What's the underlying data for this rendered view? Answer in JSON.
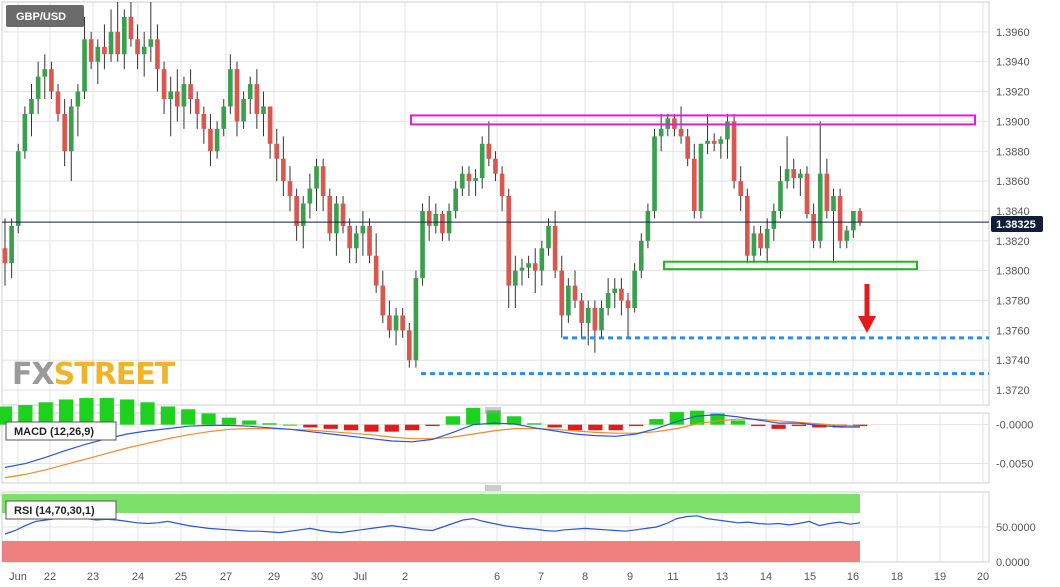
{
  "instrument": {
    "title": "GBP/USD",
    "last_price": "1.38325"
  },
  "watermark": {
    "part1": "FX",
    "part2": "STREET"
  },
  "colors": {
    "up": "#3aa04f",
    "down": "#d9574e",
    "grid": "#e3e3e3",
    "resistance": "#e21be2",
    "support": "#1fb81f",
    "levels": "#2a8df0",
    "arrow": "#e21b1b",
    "macd_line": "#2a55d8",
    "signal_line": "#f08a2a",
    "rsi_line": "#2a55d8",
    "overbought": "#7de06a",
    "oversold": "#f08080"
  },
  "chart_data": {
    "type": "candlestick",
    "x_ticks": [
      "Jun",
      "22",
      "23",
      "24",
      "25",
      "27",
      "29",
      "30",
      "Jul",
      "2",
      "6",
      "7",
      "8",
      "9",
      "11",
      "13",
      "14",
      "15",
      "16",
      "18",
      "19",
      "20"
    ],
    "y_ticks": [
      "1.3960",
      "1.3940",
      "1.3920",
      "1.3900",
      "1.3880",
      "1.3860",
      "1.3840",
      "1.3820",
      "1.3800",
      "1.3780",
      "1.3760",
      "1.3740",
      "1.3720"
    ],
    "ylim": [
      1.371,
      1.398
    ],
    "current_price": 1.38325,
    "candles": [
      [
        1.3815,
        1.3835,
        1.379,
        1.3805
      ],
      [
        1.3805,
        1.3835,
        1.3795,
        1.383
      ],
      [
        1.383,
        1.3885,
        1.3825,
        1.388
      ],
      [
        1.388,
        1.391,
        1.3875,
        1.3905
      ],
      [
        1.3905,
        1.3925,
        1.389,
        1.3915
      ],
      [
        1.3915,
        1.394,
        1.3905,
        1.393
      ],
      [
        1.393,
        1.3945,
        1.3915,
        1.3935
      ],
      [
        1.3935,
        1.394,
        1.3915,
        1.392
      ],
      [
        1.392,
        1.3925,
        1.39,
        1.3905
      ],
      [
        1.3905,
        1.3915,
        1.387,
        1.388
      ],
      [
        1.388,
        1.3915,
        1.386,
        1.391
      ],
      [
        1.391,
        1.3925,
        1.389,
        1.392
      ],
      [
        1.392,
        1.397,
        1.3915,
        1.3955
      ],
      [
        1.3955,
        1.396,
        1.3935,
        1.394
      ],
      [
        1.394,
        1.3955,
        1.3925,
        1.395
      ],
      [
        1.395,
        1.3965,
        1.3935,
        1.3945
      ],
      [
        1.3945,
        1.3975,
        1.394,
        1.396
      ],
      [
        1.396,
        1.398,
        1.394,
        1.3945
      ],
      [
        1.3945,
        1.3975,
        1.3935,
        1.397
      ],
      [
        1.397,
        1.398,
        1.395,
        1.3955
      ],
      [
        1.3955,
        1.3965,
        1.3935,
        1.3945
      ],
      [
        1.3945,
        1.396,
        1.393,
        1.395
      ],
      [
        1.395,
        1.398,
        1.394,
        1.3955
      ],
      [
        1.3955,
        1.3965,
        1.392,
        1.3935
      ],
      [
        1.3935,
        1.394,
        1.3905,
        1.3915
      ],
      [
        1.3915,
        1.393,
        1.389,
        1.392
      ],
      [
        1.392,
        1.3935,
        1.39,
        1.391
      ],
      [
        1.391,
        1.393,
        1.3895,
        1.3925
      ],
      [
        1.3925,
        1.3935,
        1.3905,
        1.3915
      ],
      [
        1.3915,
        1.392,
        1.3895,
        1.3905
      ],
      [
        1.3905,
        1.391,
        1.3885,
        1.3895
      ],
      [
        1.3895,
        1.3905,
        1.387,
        1.388
      ],
      [
        1.388,
        1.39,
        1.3875,
        1.3895
      ],
      [
        1.3895,
        1.3915,
        1.389,
        1.391
      ],
      [
        1.391,
        1.3945,
        1.3905,
        1.3935
      ],
      [
        1.3935,
        1.394,
        1.389,
        1.39
      ],
      [
        1.39,
        1.392,
        1.3895,
        1.3915
      ],
      [
        1.3915,
        1.393,
        1.3905,
        1.3925
      ],
      [
        1.3925,
        1.3935,
        1.3895,
        1.3905
      ],
      [
        1.3905,
        1.392,
        1.389,
        1.391
      ],
      [
        1.391,
        1.391,
        1.3875,
        1.3885
      ],
      [
        1.3885,
        1.3895,
        1.386,
        1.3875
      ],
      [
        1.3875,
        1.389,
        1.385,
        1.386
      ],
      [
        1.386,
        1.387,
        1.384,
        1.385
      ],
      [
        1.385,
        1.3855,
        1.382,
        1.383
      ],
      [
        1.383,
        1.385,
        1.3815,
        1.3845
      ],
      [
        1.3845,
        1.3865,
        1.3835,
        1.3855
      ],
      [
        1.3855,
        1.3875,
        1.384,
        1.387
      ],
      [
        1.387,
        1.3875,
        1.384,
        1.385
      ],
      [
        1.385,
        1.3855,
        1.382,
        1.3825
      ],
      [
        1.3825,
        1.385,
        1.381,
        1.3845
      ],
      [
        1.3845,
        1.385,
        1.3825,
        1.383
      ],
      [
        1.383,
        1.3835,
        1.3805,
        1.3815
      ],
      [
        1.3815,
        1.383,
        1.3805,
        1.3825
      ],
      [
        1.3825,
        1.384,
        1.381,
        1.383
      ],
      [
        1.383,
        1.3835,
        1.3805,
        1.381
      ],
      [
        1.381,
        1.3825,
        1.3785,
        1.379
      ],
      [
        1.379,
        1.38,
        1.3765,
        1.377
      ],
      [
        1.377,
        1.378,
        1.3755,
        1.376
      ],
      [
        1.376,
        1.3775,
        1.375,
        1.377
      ],
      [
        1.377,
        1.3775,
        1.3755,
        1.376
      ],
      [
        1.376,
        1.3765,
        1.3735,
        1.374
      ],
      [
        1.374,
        1.38,
        1.3735,
        1.3795
      ],
      [
        1.3795,
        1.3845,
        1.379,
        1.384
      ],
      [
        1.384,
        1.385,
        1.382,
        1.383
      ],
      [
        1.383,
        1.3845,
        1.3825,
        1.3838
      ],
      [
        1.3838,
        1.384,
        1.382,
        1.3825
      ],
      [
        1.3825,
        1.3845,
        1.382,
        1.384
      ],
      [
        1.384,
        1.386,
        1.3835,
        1.3855
      ],
      [
        1.3855,
        1.387,
        1.385,
        1.3865
      ],
      [
        1.3865,
        1.387,
        1.385,
        1.386
      ],
      [
        1.386,
        1.3868,
        1.385,
        1.3862
      ],
      [
        1.3862,
        1.389,
        1.3855,
        1.3885
      ],
      [
        1.3885,
        1.39,
        1.387,
        1.3875
      ],
      [
        1.3875,
        1.388,
        1.386,
        1.3865
      ],
      [
        1.3865,
        1.387,
        1.384,
        1.385
      ],
      [
        1.385,
        1.3855,
        1.3775,
        1.379
      ],
      [
        1.379,
        1.381,
        1.3775,
        1.38
      ],
      [
        1.38,
        1.3808,
        1.379,
        1.3802
      ],
      [
        1.3802,
        1.381,
        1.3795,
        1.3805
      ],
      [
        1.3805,
        1.3815,
        1.3785,
        1.38
      ],
      [
        1.38,
        1.382,
        1.379,
        1.3815
      ],
      [
        1.3815,
        1.3835,
        1.381,
        1.383
      ],
      [
        1.383,
        1.384,
        1.3795,
        1.38
      ],
      [
        1.38,
        1.381,
        1.3755,
        1.377
      ],
      [
        1.377,
        1.3795,
        1.3765,
        1.379
      ],
      [
        1.379,
        1.38,
        1.3775,
        1.378
      ],
      [
        1.378,
        1.3785,
        1.3755,
        1.3765
      ],
      [
        1.3765,
        1.378,
        1.375,
        1.3775
      ],
      [
        1.3775,
        1.378,
        1.3745,
        1.376
      ],
      [
        1.376,
        1.378,
        1.3755,
        1.3775
      ],
      [
        1.3775,
        1.3795,
        1.377,
        1.3785
      ],
      [
        1.3785,
        1.3795,
        1.3775,
        1.3788
      ],
      [
        1.3788,
        1.3795,
        1.377,
        1.378
      ],
      [
        1.378,
        1.3785,
        1.3755,
        1.3775
      ],
      [
        1.3775,
        1.3805,
        1.3772,
        1.38
      ],
      [
        1.38,
        1.3825,
        1.3795,
        1.382
      ],
      [
        1.382,
        1.3845,
        1.3815,
        1.384
      ],
      [
        1.384,
        1.3895,
        1.3835,
        1.389
      ],
      [
        1.389,
        1.3905,
        1.388,
        1.3895
      ],
      [
        1.3895,
        1.3905,
        1.389,
        1.3902
      ],
      [
        1.3902,
        1.3905,
        1.389,
        1.3895
      ],
      [
        1.3895,
        1.391,
        1.3885,
        1.389
      ],
      [
        1.389,
        1.3895,
        1.387,
        1.3875
      ],
      [
        1.3875,
        1.3885,
        1.3835,
        1.384
      ],
      [
        1.384,
        1.3885,
        1.3835,
        1.3885
      ],
      [
        1.3885,
        1.3905,
        1.3878,
        1.3887
      ],
      [
        1.3887,
        1.3892,
        1.388,
        1.3885
      ],
      [
        1.3885,
        1.389,
        1.3875,
        1.3888
      ],
      [
        1.3888,
        1.3905,
        1.3875,
        1.39
      ],
      [
        1.39,
        1.3905,
        1.3855,
        1.386
      ],
      [
        1.386,
        1.387,
        1.384,
        1.385
      ],
      [
        1.385,
        1.3855,
        1.3805,
        1.381
      ],
      [
        1.381,
        1.383,
        1.3805,
        1.3825
      ],
      [
        1.3825,
        1.383,
        1.381,
        1.3815
      ],
      [
        1.3815,
        1.3835,
        1.3805,
        1.3828
      ],
      [
        1.3828,
        1.3845,
        1.382,
        1.384
      ],
      [
        1.384,
        1.387,
        1.3835,
        1.386
      ],
      [
        1.386,
        1.389,
        1.3855,
        1.3868
      ],
      [
        1.3868,
        1.3875,
        1.3855,
        1.3862
      ],
      [
        1.3862,
        1.3868,
        1.385,
        1.3865
      ],
      [
        1.3865,
        1.387,
        1.3835,
        1.3838
      ],
      [
        1.3838,
        1.3845,
        1.3815,
        1.382
      ],
      [
        1.382,
        1.39,
        1.3815,
        1.3865
      ],
      [
        1.3865,
        1.3875,
        1.3835,
        1.384
      ],
      [
        1.384,
        1.3855,
        1.3805,
        1.385
      ],
      [
        1.385,
        1.3855,
        1.3815,
        1.382
      ],
      [
        1.382,
        1.383,
        1.3815,
        1.3827
      ],
      [
        1.3827,
        1.384,
        1.3822,
        1.384
      ],
      [
        1.384,
        1.3842,
        1.383,
        1.38325
      ]
    ],
    "resistance_zone": [
      1.3898,
      1.3904
    ],
    "support_zone": [
      1.3801,
      1.3806
    ],
    "dotted_levels": [
      1.3755,
      1.3731
    ],
    "arrow": "down",
    "macd": {
      "label": "MACD (12,26,9)",
      "y_ticks": [
        "-0.0000",
        "-0.0050"
      ],
      "ylim": [
        -0.0075,
        0.0015
      ],
      "macd": [
        -0.0055,
        -0.005,
        -0.0042,
        -0.0033,
        -0.0025,
        -0.0018,
        -0.0012,
        -0.0008,
        -0.0005,
        -0.0002,
        -0.0001,
        -0.0001,
        -0.0002,
        -0.0004,
        -0.0006,
        -0.0009,
        -0.0012,
        -0.0015,
        -0.0018,
        -0.0021,
        -0.0022,
        -0.0019,
        -0.001,
        0.0,
        0.0002,
        0.0001,
        -0.0004,
        -0.0008,
        -0.0012,
        -0.0014,
        -0.0015,
        -0.0012,
        -0.0005,
        0.0004,
        0.0011,
        0.0013,
        0.001,
        0.0006,
        0.0002,
        0.0002,
        -0.0001,
        -0.0003,
        -0.0003
      ],
      "signal": [
        -0.0068,
        -0.0064,
        -0.0058,
        -0.0051,
        -0.0044,
        -0.0037,
        -0.003,
        -0.0024,
        -0.0018,
        -0.0013,
        -0.0009,
        -0.0006,
        -0.0005,
        -0.0005,
        -0.0006,
        -0.0007,
        -0.0009,
        -0.0011,
        -0.0013,
        -0.0016,
        -0.0018,
        -0.0018,
        -0.0016,
        -0.0012,
        -0.0008,
        -0.0005,
        -0.0005,
        -0.0006,
        -0.0008,
        -0.001,
        -0.0011,
        -0.0011,
        -0.0009,
        -0.0005,
        0.0001,
        0.0005,
        0.0007,
        0.0007,
        0.0005,
        0.0003,
        0.0001,
        -0.0001,
        -0.0002
      ]
    },
    "rsi": {
      "label": "RSI (14,70,30,1)",
      "y_ticks": [
        "50.0000",
        "0.0000"
      ],
      "ylim": [
        0,
        100
      ],
      "overbought": 70,
      "oversold": 30,
      "values": [
        40,
        45,
        52,
        58,
        60,
        62,
        64,
        63,
        62,
        60,
        61,
        60,
        58,
        56,
        55,
        56,
        58,
        55,
        52,
        50,
        48,
        47,
        46,
        45,
        44,
        44,
        43,
        42,
        44,
        46,
        48,
        45,
        43,
        42,
        44,
        46,
        48,
        50,
        52,
        50,
        48,
        46,
        45,
        50,
        55,
        60,
        62,
        58,
        55,
        52,
        50,
        48,
        47,
        45,
        44,
        46,
        47,
        48,
        47,
        46,
        45,
        44,
        46,
        48,
        50,
        55,
        62,
        65,
        66,
        62,
        60,
        58,
        56,
        57,
        55,
        54,
        55,
        53,
        55,
        58,
        52,
        55,
        57,
        54,
        56
      ]
    }
  }
}
